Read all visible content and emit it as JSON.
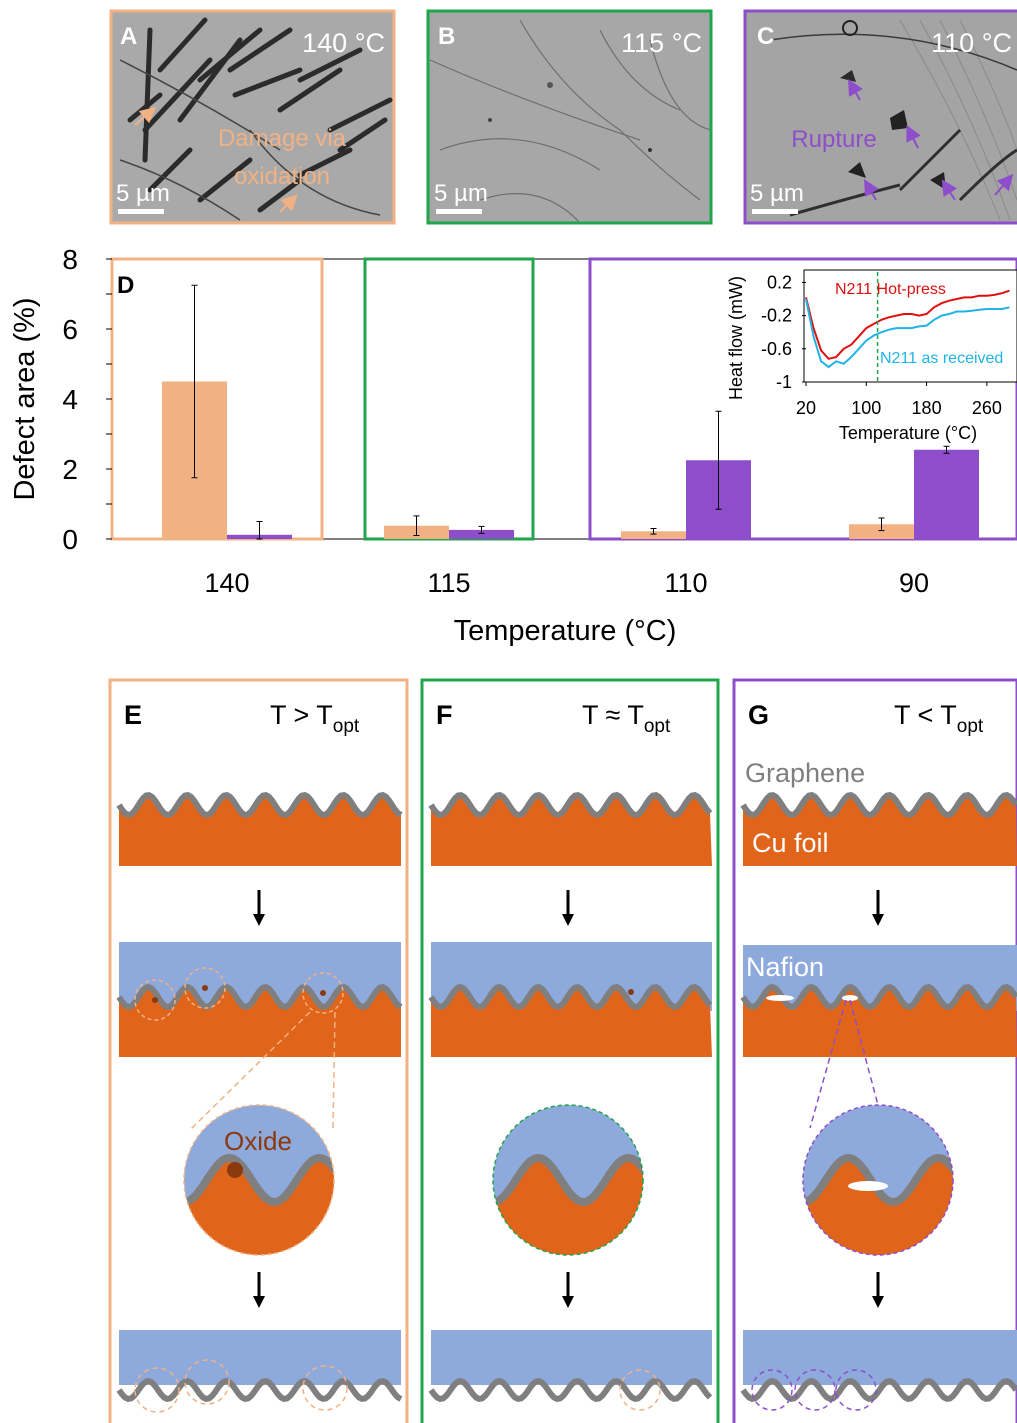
{
  "colors": {
    "orange": "#F2B183",
    "purple": "#8E4ECB",
    "green": "#1FA64B",
    "copper": "#E0641A",
    "graphene": "#7F7F7F",
    "nafion": "#8EA9DB",
    "oxide": "#8B3A0F",
    "sem_gray": "#A6A6A6"
  },
  "sem_panels": [
    {
      "letter": "A",
      "temp": "140 °C",
      "scale": "5 µm",
      "annotation": [
        "Damage via",
        "oxidation"
      ],
      "border": "orange"
    },
    {
      "letter": "B",
      "temp": "115 °C",
      "scale": "5 µm",
      "annotation": [],
      "border": "green"
    },
    {
      "letter": "C",
      "temp": "110 °C",
      "scale": "5 µm",
      "annotation": [
        "Rupture"
      ],
      "border": "purple"
    }
  ],
  "chart_data": [
    {
      "type": "bar",
      "panel_letter": "D",
      "categories": [
        "140",
        "115",
        "110",
        "90"
      ],
      "series": [
        {
          "color": "#F2B183",
          "values": [
            4.5,
            0.38,
            0.22,
            0.42
          ],
          "error": [
            2.75,
            0.28,
            0.08,
            0.18
          ]
        },
        {
          "color": "#8E4ECB",
          "values": [
            0.12,
            0.26,
            2.25,
            2.55
          ],
          "error": [
            0.38,
            0.1,
            1.4,
            0.1
          ]
        }
      ],
      "xlabel": "Temperature (°C)",
      "ylabel": "Defect area (%)",
      "ylim": [
        0,
        8
      ],
      "yticks": [
        0,
        2,
        4,
        6,
        8
      ]
    },
    {
      "type": "line",
      "inset": true,
      "series": [
        {
          "name": "N211 Hot-press",
          "color": "#E01010",
          "x": [
            20,
            30,
            40,
            50,
            60,
            70,
            80,
            90,
            100,
            110,
            120,
            130,
            140,
            150,
            160,
            170,
            180,
            190,
            200,
            210,
            220,
            230,
            240,
            250,
            260,
            270,
            280,
            290
          ],
          "y": [
            0.02,
            -0.35,
            -0.62,
            -0.72,
            -0.7,
            -0.6,
            -0.55,
            -0.45,
            -0.35,
            -0.3,
            -0.25,
            -0.22,
            -0.2,
            -0.18,
            -0.18,
            -0.2,
            -0.18,
            -0.1,
            -0.05,
            -0.02,
            0,
            0.02,
            0.02,
            0.04,
            0.04,
            0.05,
            0.07,
            0.1
          ]
        },
        {
          "name": "N211 as received",
          "color": "#1FB4E6",
          "x": [
            20,
            30,
            40,
            50,
            60,
            70,
            80,
            90,
            100,
            110,
            120,
            130,
            140,
            150,
            160,
            170,
            180,
            190,
            200,
            210,
            220,
            230,
            240,
            250,
            260,
            270,
            280,
            290
          ],
          "y": [
            0,
            -0.45,
            -0.75,
            -0.82,
            -0.75,
            -0.78,
            -0.7,
            -0.6,
            -0.5,
            -0.44,
            -0.4,
            -0.37,
            -0.35,
            -0.35,
            -0.35,
            -0.33,
            -0.32,
            -0.25,
            -0.2,
            -0.18,
            -0.15,
            -0.15,
            -0.14,
            -0.13,
            -0.12,
            -0.12,
            -0.12,
            -0.1
          ]
        }
      ],
      "marker_x": 115,
      "xlabel": "Temperature (°C)",
      "ylabel": "Heat flow (mW)",
      "xticks": [
        "20",
        "100",
        "180",
        "260"
      ],
      "yticks": [
        "0.2",
        "-0.2",
        "-0.6",
        "-1"
      ],
      "xlim": [
        20,
        300
      ],
      "ylim": [
        -1,
        0.35
      ]
    }
  ],
  "schematic_panels": [
    {
      "letter": "E",
      "cond": "T > T",
      "sub": "opt",
      "border": "orange",
      "labels": {
        "oxide": "Oxide"
      }
    },
    {
      "letter": "F",
      "cond": "T ≈ T",
      "sub": "opt",
      "border": "green",
      "labels": {}
    },
    {
      "letter": "G",
      "cond": "T < T",
      "sub": "opt",
      "border": "purple",
      "labels": {
        "graphene": "Graphene",
        "cu": "Cu foil",
        "nafion": "Nafion"
      }
    }
  ]
}
